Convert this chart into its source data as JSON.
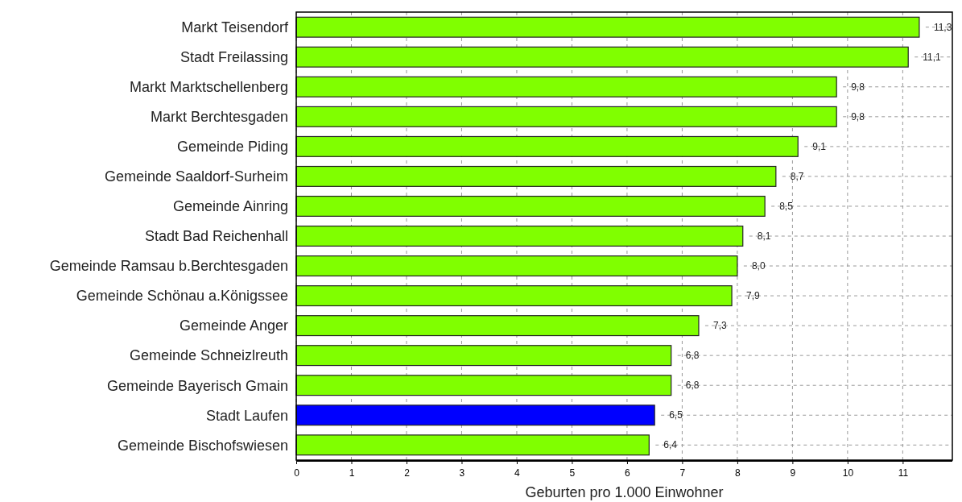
{
  "chart_data": {
    "type": "bar",
    "orientation": "horizontal",
    "xlabel": "Geburten pro 1.000 Einwohner",
    "categories": [
      "Markt Teisendorf",
      "Stadt Freilassing",
      "Markt Marktschellenberg",
      "Markt Berchtesgaden",
      "Gemeinde Piding",
      "Gemeinde Saaldorf-Surheim",
      "Gemeinde Ainring",
      "Stadt Bad Reichenhall",
      "Gemeinde Ramsau b.Berchtesgaden",
      "Gemeinde Schönau a.Königssee",
      "Gemeinde Anger",
      "Gemeinde Schneizlreuth",
      "Gemeinde Bayerisch Gmain",
      "Stadt Laufen",
      "Gemeinde Bischofswiesen"
    ],
    "values": [
      11.3,
      11.1,
      9.8,
      9.8,
      9.1,
      8.7,
      8.5,
      8.1,
      8.0,
      7.9,
      7.3,
      6.8,
      6.8,
      6.5,
      6.4
    ],
    "value_labels": [
      "11,3",
      "11,1",
      "9,8",
      "9,8",
      "9,1",
      "8,7",
      "8,5",
      "8,1",
      "8,0",
      "7,9",
      "7,3",
      "6,8",
      "6,8",
      "6,5",
      "6,4"
    ],
    "colors": [
      "#80ff00",
      "#80ff00",
      "#80ff00",
      "#80ff00",
      "#80ff00",
      "#80ff00",
      "#80ff00",
      "#80ff00",
      "#80ff00",
      "#80ff00",
      "#80ff00",
      "#80ff00",
      "#80ff00",
      "#0000ff",
      "#80ff00"
    ],
    "xlim": [
      0,
      11.9
    ],
    "xticks": [
      0,
      1,
      2,
      3,
      4,
      5,
      6,
      7,
      8,
      9,
      10,
      11
    ],
    "grid": true
  }
}
